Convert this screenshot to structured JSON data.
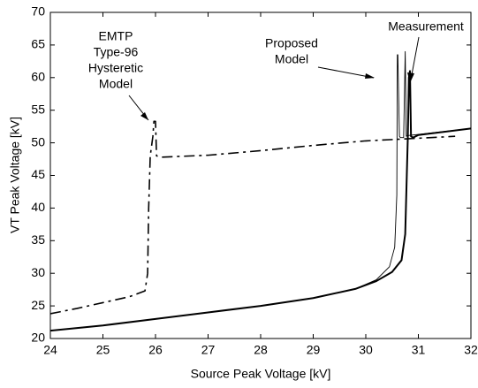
{
  "chart_data": {
    "type": "line",
    "x_label": "Source Peak Voltage [kV]",
    "y_label": "VT Peak Voltage [kV]",
    "xlim": [
      24,
      32
    ],
    "ylim": [
      20,
      70
    ],
    "xticks": [
      24,
      25,
      26,
      27,
      28,
      29,
      30,
      31,
      32
    ],
    "yticks": [
      20,
      25,
      30,
      35,
      40,
      45,
      50,
      55,
      60,
      65,
      70
    ],
    "grid": false,
    "series": [
      {
        "color": "#000000",
        "linestyle": "dashdot",
        "linewidth": 1.6,
        "x": [
          24,
          24.5,
          25,
          25.5,
          25.8,
          25.85,
          25.87,
          25.9,
          25.95,
          25.97,
          26.0,
          26.02,
          26.1,
          27,
          28,
          29,
          30,
          31,
          31.7
        ],
        "values": [
          23.8,
          24.6,
          25.5,
          26.4,
          27.3,
          30,
          40,
          48,
          51,
          53.3,
          53.3,
          48,
          47.8,
          48.1,
          48.8,
          49.6,
          50.3,
          50.7,
          51
        ]
      },
      {
        "color": "#000000",
        "linestyle": "solid",
        "linewidth": 0.9,
        "x": [
          24,
          25,
          26,
          27,
          28,
          29,
          29.8,
          30.2,
          30.45,
          30.55,
          30.59,
          30.6,
          30.61,
          30.64,
          30.66,
          30.72,
          30.75,
          30.77,
          30.79,
          31,
          32
        ],
        "values": [
          21.2,
          22.0,
          23.0,
          24.0,
          25.0,
          26.2,
          27.6,
          29.0,
          31.0,
          34.0,
          42.0,
          63.5,
          63.5,
          51.0,
          50.8,
          50.8,
          64.0,
          51.0,
          51.1,
          51.3,
          52.2
        ]
      },
      {
        "color": "#000000",
        "linestyle": "solid",
        "linewidth": 2,
        "x": [
          24,
          25,
          26,
          27,
          28,
          29,
          29.8,
          30.2,
          30.5,
          30.68,
          30.75,
          30.78,
          30.8,
          30.82,
          30.84,
          30.86,
          30.9,
          31,
          32
        ],
        "values": [
          21.2,
          22.0,
          23.0,
          24.0,
          25.0,
          26.2,
          27.6,
          28.8,
          30.2,
          32.0,
          36.0,
          45.0,
          51.0,
          60.0,
          61.0,
          51.0,
          50.8,
          51.2,
          52.2
        ]
      }
    ],
    "annotations": [
      {
        "text": [
          "EMTP",
          "Type-96",
          "Hysteretic",
          "Model"
        ]
      },
      {
        "text": [
          "Proposed",
          "Model"
        ]
      },
      {
        "text": [
          "Measurement"
        ]
      }
    ]
  }
}
